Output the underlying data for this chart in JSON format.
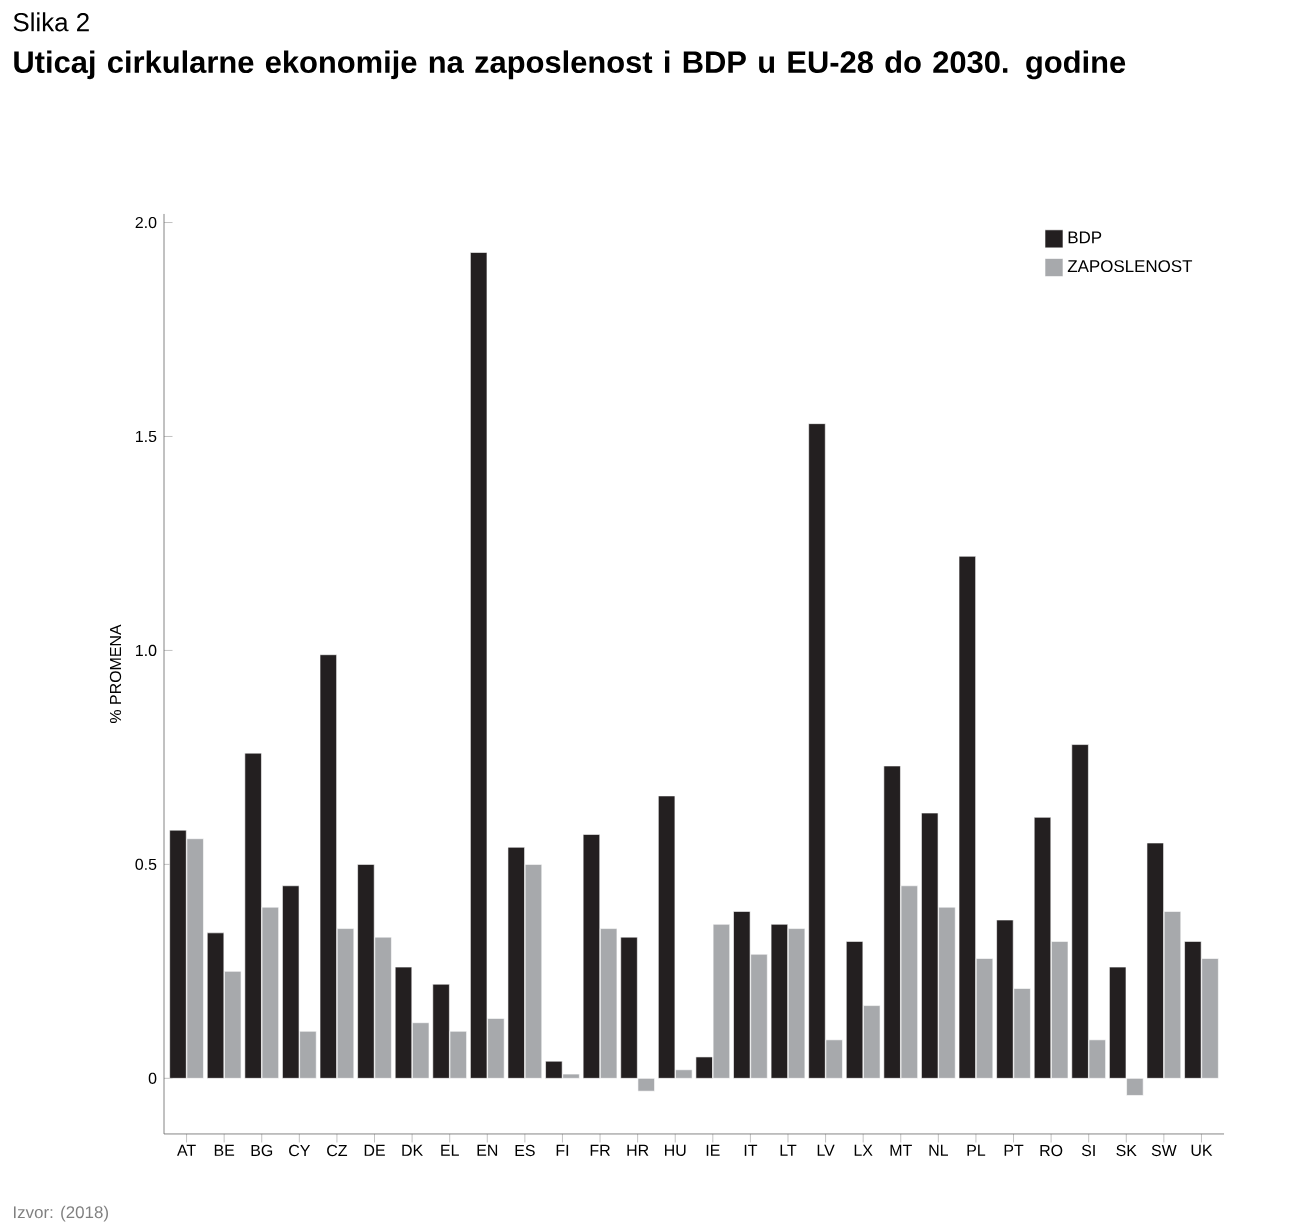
{
  "chart_data": {
    "type": "bar",
    "subtitle": "Slika 2",
    "title": "Uticaj cirkularne ekonomije na zaposlenost i BDP u EU-28 do 2030. godine",
    "ylabel": "% PROMENA",
    "annotations": [
      "Izvor: (2018)"
    ],
    "categories": [
      "AT",
      "BE",
      "BG",
      "CY",
      "CZ",
      "DE",
      "DK",
      "EL",
      "EN",
      "ES",
      "FI",
      "FR",
      "HR",
      "HU",
      "IE",
      "IT",
      "LT",
      "LV",
      "LX",
      "MT",
      "NL",
      "PL",
      "PT",
      "RO",
      "SI",
      "SK",
      "SW",
      "UK"
    ],
    "series": [
      {
        "name": "BDP",
        "color": "#231f20",
        "values": [
          0.58,
          0.34,
          0.76,
          0.45,
          0.99,
          0.5,
          0.26,
          0.22,
          1.93,
          0.54,
          0.04,
          0.57,
          0.33,
          0.66,
          0.05,
          0.39,
          0.36,
          1.53,
          0.32,
          0.73,
          0.62,
          1.22,
          0.37,
          0.61,
          0.78,
          0.26,
          0.55,
          0.32
        ]
      },
      {
        "name": "ZAPOSLENOST",
        "color": "#a7a9ac",
        "values": [
          0.56,
          0.25,
          0.4,
          0.11,
          0.35,
          0.33,
          0.13,
          0.11,
          0.14,
          0.5,
          0.01,
          0.35,
          -0.03,
          0.02,
          0.36,
          0.29,
          0.35,
          0.09,
          0.17,
          0.45,
          0.4,
          0.28,
          0.21,
          0.32,
          0.09,
          -0.04,
          0.39,
          0.28
        ]
      }
    ],
    "ylim": [
      -0.13,
      2.02
    ],
    "yticks": [
      0,
      {
        "value": 0.5,
        "label": "0.5"
      },
      {
        "value": 1,
        "label": "1.0"
      },
      {
        "value": 1.5,
        "label": "1.5"
      },
      {
        "value": 2,
        "label": "2.0"
      }
    ],
    "legend": "top right"
  }
}
